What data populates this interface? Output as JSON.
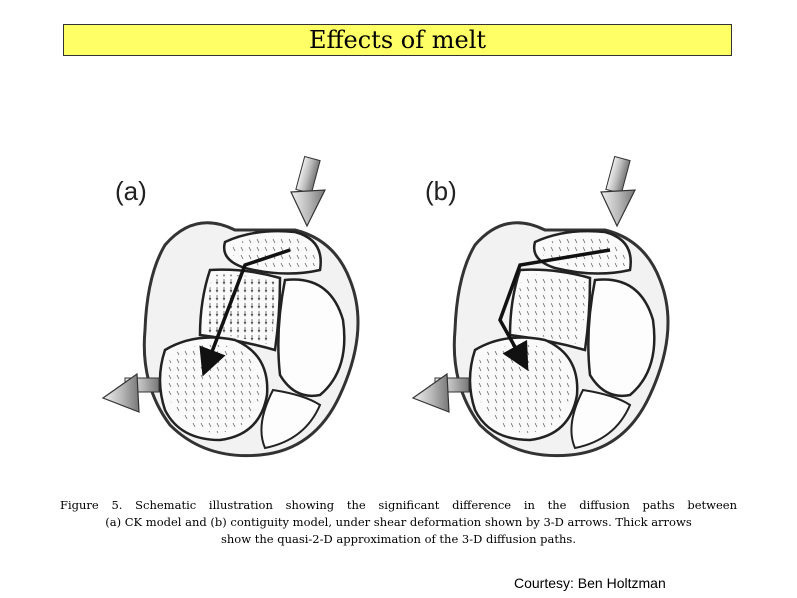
{
  "title": "Effects of melt",
  "figure": {
    "panel_a_label": "(a)",
    "panel_b_label": "(b)"
  },
  "caption": {
    "line1": "Figure 5.  Schematic illustration showing the significant difference in the diffusion paths between",
    "line2": "(a) CK model and (b) contiguity model, under shear deformation shown by 3-D arrows. Thick arrows",
    "line3": "show the quasi-2-D approximation of the 3-D diffusion paths."
  },
  "courtesy": "Courtesy: Ben Holtzman"
}
